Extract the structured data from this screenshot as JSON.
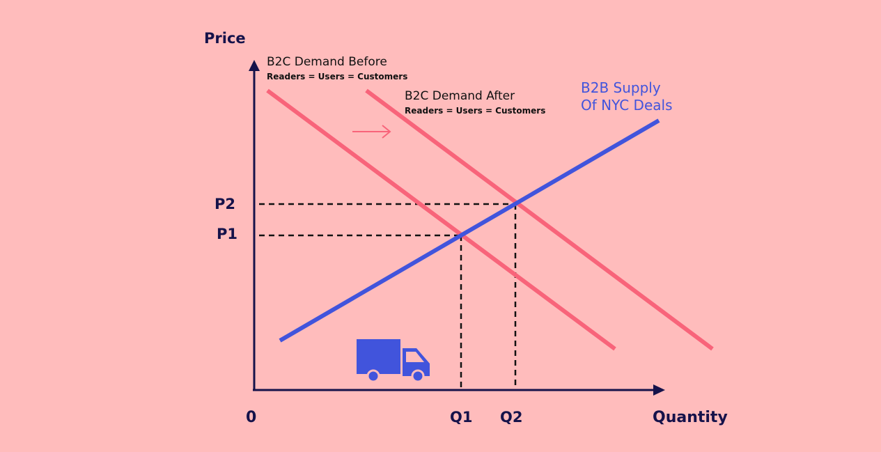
{
  "axes": {
    "y_label": "Price",
    "x_label": "Quantity",
    "origin": "0",
    "p1": "P1",
    "p2": "P2",
    "q1": "Q1",
    "q2": "Q2"
  },
  "curves": {
    "demand_before": {
      "title": "B2C Demand Before",
      "subtitle": "Readers = Users = Customers"
    },
    "demand_after": {
      "title": "B2C Demand After",
      "subtitle": "Readers = Users = Customers"
    },
    "supply": {
      "line1": "B2B Supply",
      "line2": "Of NYC Deals"
    }
  },
  "colors": {
    "background": "#ffbcbc",
    "axis": "#15124a",
    "demand": "#f8647a",
    "supply": "#4154dc",
    "truck": "#4154dc"
  },
  "icons": {
    "shift_arrow": "right-arrow-icon",
    "truck": "truck-icon"
  }
}
